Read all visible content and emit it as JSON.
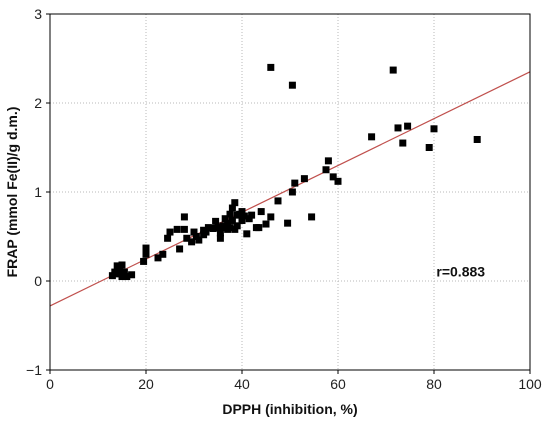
{
  "chart_data": {
    "type": "scatter",
    "xlabel": "DPPH (inhibition, %)",
    "ylabel": "FRAP (mmol Fe(II)/g d.m.)",
    "xlim": [
      0,
      100
    ],
    "ylim": [
      -1,
      3
    ],
    "xticks": [
      0,
      20,
      40,
      60,
      80,
      100
    ],
    "yticks": [
      -1,
      0,
      1,
      2,
      3
    ],
    "grid": true,
    "series": [
      {
        "marker": "square",
        "color": "#000000",
        "x": [
          13,
          13.5,
          14,
          14.5,
          15,
          15,
          15.5,
          16,
          17,
          14,
          14.5,
          15,
          19.5,
          20,
          20,
          22.5,
          23.5,
          24.5,
          25,
          26.5,
          27,
          28,
          28,
          28.5,
          29.5,
          30,
          30.5,
          31,
          32,
          32,
          32.5,
          33,
          34,
          34.5,
          35,
          35.5,
          35.5,
          36,
          36,
          36.5,
          37,
          37,
          37.5,
          37.5,
          38,
          38,
          38.5,
          38.5,
          39,
          39,
          39.5,
          40,
          40,
          40.5,
          41,
          41.5,
          42,
          43,
          43.5,
          44,
          45,
          46,
          47.5,
          49.5,
          50.5,
          51,
          53,
          54.5,
          57.5,
          58,
          59,
          60,
          46,
          50.5,
          67,
          71.5,
          72.5,
          73.5,
          74.5,
          79,
          80,
          89
        ],
        "y": [
          0.06,
          0.1,
          0.08,
          0.15,
          0.05,
          0.18,
          0.1,
          0.05,
          0.07,
          0.17,
          0.12,
          0.08,
          0.22,
          0.3,
          0.37,
          0.26,
          0.3,
          0.48,
          0.55,
          0.58,
          0.36,
          0.72,
          0.58,
          0.48,
          0.44,
          0.55,
          0.5,
          0.46,
          0.57,
          0.52,
          0.55,
          0.6,
          0.59,
          0.67,
          0.6,
          0.54,
          0.48,
          0.62,
          0.6,
          0.7,
          0.65,
          0.58,
          0.6,
          0.75,
          0.82,
          0.68,
          0.88,
          0.58,
          0.74,
          0.62,
          0.75,
          0.68,
          0.78,
          0.73,
          0.53,
          0.7,
          0.74,
          0.6,
          0.6,
          0.78,
          0.64,
          0.72,
          0.9,
          0.65,
          1.0,
          1.1,
          1.15,
          0.72,
          1.25,
          1.35,
          1.17,
          1.12,
          2.4,
          2.2,
          1.62,
          2.37,
          1.72,
          1.55,
          1.74,
          1.5,
          1.71,
          1.59
        ]
      }
    ],
    "trendline": {
      "x": [
        0,
        100
      ],
      "y": [
        -0.28,
        2.35
      ],
      "color": "#c0504d"
    },
    "annotation": {
      "text": "r=0.883",
      "x": 80.5,
      "y": 0.05
    }
  }
}
